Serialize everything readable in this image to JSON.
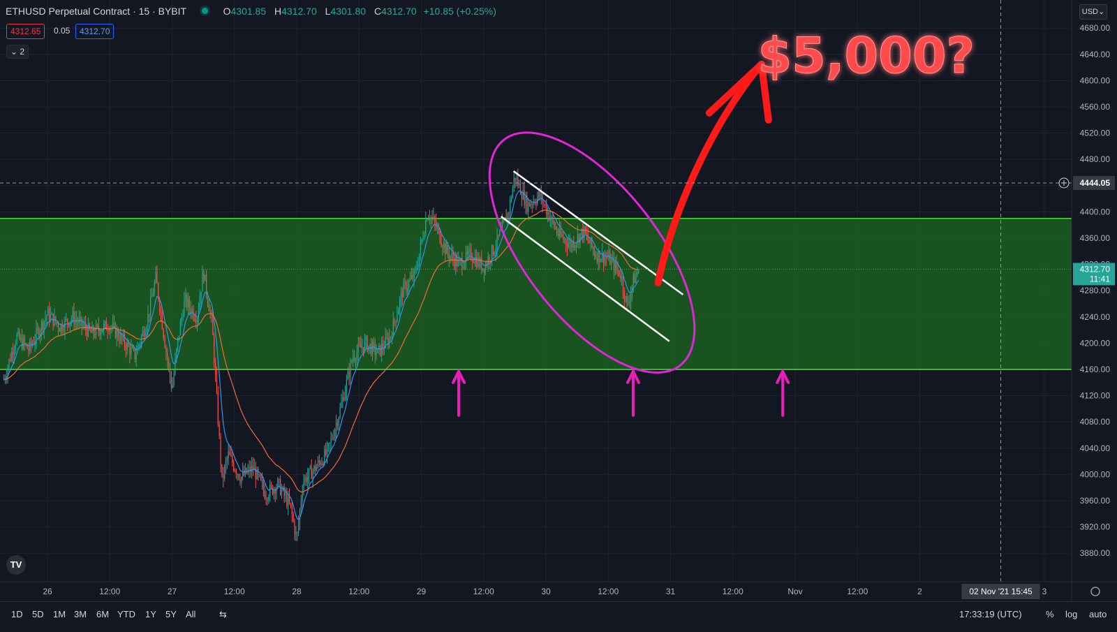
{
  "header": {
    "symbol": "ETHUSD Perpetual Contract · 15 · BYBIT",
    "open_label": "O",
    "open": "4301.85",
    "high_label": "H",
    "high": "4312.70",
    "low_label": "L",
    "low": "4301.80",
    "close_label": "C",
    "close": "4312.70",
    "change": "+10.85 (+0.25%)"
  },
  "order": {
    "sell": "4312.65",
    "spread": "0.05",
    "buy": "4312.70"
  },
  "indicators_collapse": "2",
  "currency": "USD",
  "annotation_text": "$5,000?",
  "crosshair": {
    "price_label": "4444.05",
    "time_label": "02 Nov '21   15:45"
  },
  "last_price": {
    "price": "4312.70",
    "countdown": "11:41"
  },
  "range_buttons": [
    "1D",
    "5D",
    "1M",
    "3M",
    "6M",
    "YTD",
    "1Y",
    "5Y",
    "All"
  ],
  "clock": "17:33:19 (UTC)",
  "scale_options": {
    "percent": "%",
    "log": "log",
    "auto": "auto"
  },
  "colors": {
    "up": "#26a69a",
    "down": "#ef5350",
    "zone": "#1b5e20",
    "zone_border": "#4cdd3a",
    "ellipse": "#e026d6",
    "arrow": "#ff1a1a",
    "neon_text": "#ff4b4b",
    "pink_arrow": "#e91eb8",
    "ma_fast": "#2f95f0",
    "ma_slow": "#f26b3a"
  },
  "chart_data": {
    "type": "candlestick",
    "title": "ETHUSD Perpetual Contract · 15 · BYBIT",
    "y_ticks": [
      3880,
      3920,
      3960,
      4000,
      4040,
      4080,
      4120,
      4160,
      4200,
      4240,
      4280,
      4320,
      4360,
      4400,
      4440,
      4480,
      4520,
      4560,
      4600,
      4640,
      4680
    ],
    "y_tick_labels": [
      "3880.00",
      "3920.00",
      "3960.00",
      "4000.00",
      "4040.00",
      "4080.00",
      "4120.00",
      "4160.00",
      "4200.00",
      "4240.00",
      "4280.00",
      "4320.00",
      "4360.00",
      "4400.00",
      "4440.00",
      "4480.00",
      "4520.00",
      "4560.00",
      "4600.00",
      "4640.00",
      "4680.00"
    ],
    "ylim": [
      3855,
      4700
    ],
    "x_ticks": [
      {
        "label": "26",
        "x": 0
      },
      {
        "label": "12:00",
        "x": 0.5
      },
      {
        "label": "27",
        "x": 1
      },
      {
        "label": "12:00",
        "x": 1.5
      },
      {
        "label": "28",
        "x": 2
      },
      {
        "label": "12:00",
        "x": 2.5
      },
      {
        "label": "29",
        "x": 3
      },
      {
        "label": "12:00",
        "x": 3.5
      },
      {
        "label": "30",
        "x": 4
      },
      {
        "label": "12:00",
        "x": 4.5
      },
      {
        "label": "31",
        "x": 5
      },
      {
        "label": "12:00",
        "x": 5.5
      },
      {
        "label": "Nov",
        "x": 6
      },
      {
        "label": "12:00",
        "x": 6.5
      },
      {
        "label": "2",
        "x": 7
      },
      {
        "label": "3",
        "x": 8
      }
    ],
    "support_zone": [
      4160,
      4390
    ],
    "annotations": [
      "descending channel",
      "target $5,000?"
    ],
    "price_path": [
      [
        -0.35,
        4145
      ],
      [
        -0.25,
        4210
      ],
      [
        -0.15,
        4190
      ],
      [
        0.0,
        4245
      ],
      [
        0.1,
        4225
      ],
      [
        0.2,
        4240
      ],
      [
        0.35,
        4215
      ],
      [
        0.5,
        4228
      ],
      [
        0.6,
        4205
      ],
      [
        0.7,
        4180
      ],
      [
        0.8,
        4235
      ],
      [
        0.87,
        4300
      ],
      [
        0.95,
        4190
      ],
      [
        1.0,
        4130
      ],
      [
        1.05,
        4210
      ],
      [
        1.1,
        4265
      ],
      [
        1.2,
        4240
      ],
      [
        1.25,
        4310
      ],
      [
        1.32,
        4230
      ],
      [
        1.4,
        3990
      ],
      [
        1.45,
        4030
      ],
      [
        1.55,
        3995
      ],
      [
        1.65,
        4010
      ],
      [
        1.75,
        3970
      ],
      [
        1.85,
        3985
      ],
      [
        1.95,
        3950
      ],
      [
        2.0,
        3900
      ],
      [
        2.05,
        3990
      ],
      [
        2.15,
        4010
      ],
      [
        2.25,
        4035
      ],
      [
        2.35,
        4100
      ],
      [
        2.45,
        4180
      ],
      [
        2.55,
        4200
      ],
      [
        2.65,
        4185
      ],
      [
        2.75,
        4210
      ],
      [
        2.85,
        4280
      ],
      [
        2.95,
        4305
      ],
      [
        3.05,
        4400
      ],
      [
        3.1,
        4385
      ],
      [
        3.2,
        4340
      ],
      [
        3.3,
        4320
      ],
      [
        3.4,
        4335
      ],
      [
        3.5,
        4315
      ],
      [
        3.6,
        4350
      ],
      [
        3.7,
        4400
      ],
      [
        3.75,
        4455
      ],
      [
        3.85,
        4410
      ],
      [
        3.95,
        4425
      ],
      [
        4.0,
        4405
      ],
      [
        4.1,
        4365
      ],
      [
        4.2,
        4350
      ],
      [
        4.3,
        4370
      ],
      [
        4.4,
        4335
      ],
      [
        4.5,
        4330
      ],
      [
        4.6,
        4305
      ],
      [
        4.65,
        4255
      ],
      [
        4.7,
        4295
      ],
      [
        4.75,
        4312.7
      ]
    ]
  }
}
